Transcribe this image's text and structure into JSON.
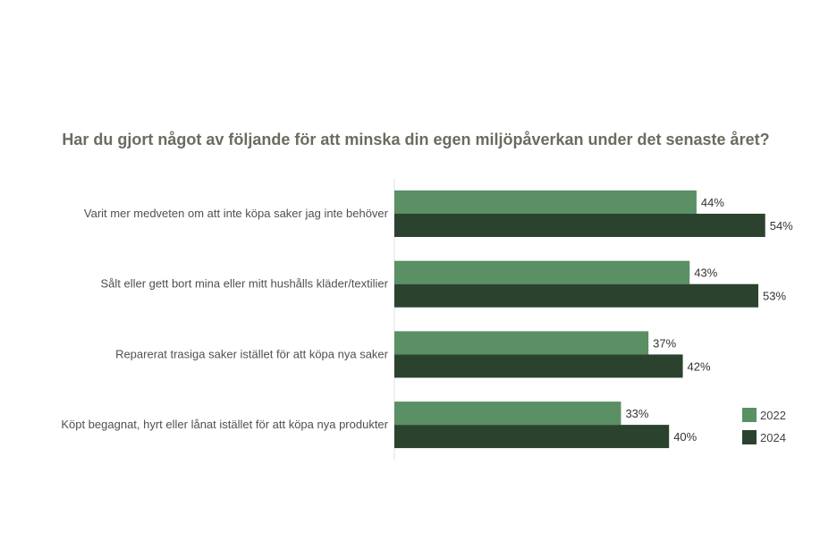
{
  "chart_data": {
    "type": "bar",
    "orientation": "horizontal",
    "title": "Har du gjort något av följande för att minska din egen miljöpåverkan under det senaste året?",
    "categories": [
      "Varit mer medveten om att inte köpa saker jag inte behöver",
      "Sålt eller gett bort mina eller mitt hushålls kläder/textilier",
      "Reparerat trasiga saker istället för att köpa nya saker",
      "Köpt begagnat, hyrt eller lånat istället för att köpa nya produkter"
    ],
    "series": [
      {
        "name": "2022",
        "color": "#5b8f64",
        "values": [
          44,
          43,
          37,
          33
        ]
      },
      {
        "name": "2024",
        "color": "#2b432e",
        "values": [
          54,
          53,
          42,
          40
        ]
      }
    ],
    "value_suffix": "%",
    "xlim": [
      0,
      100
    ],
    "grid": false,
    "legend": "bottom-right"
  }
}
